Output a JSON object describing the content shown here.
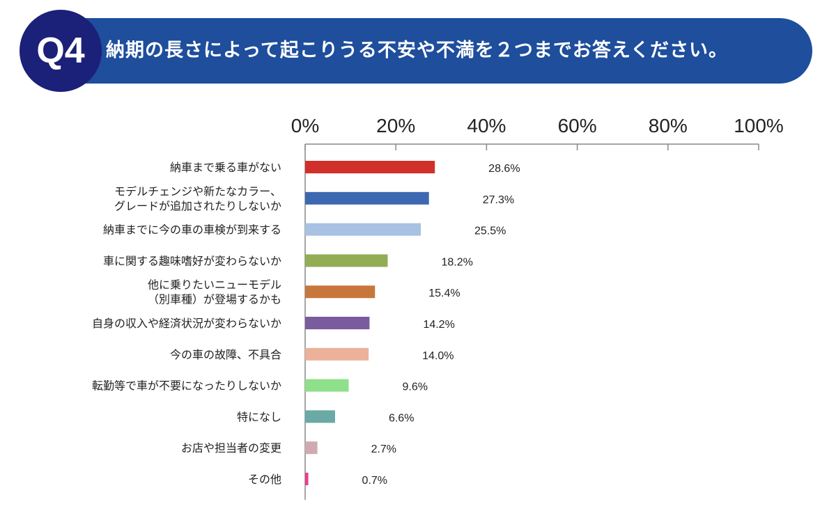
{
  "header": {
    "badge": "Q4",
    "question": "納期の長さによって起こりうる不安や不満を２つまでお答えください。"
  },
  "chart_data": {
    "type": "bar",
    "orientation": "horizontal",
    "xlim": [
      0,
      100
    ],
    "x_ticks": [
      "0%",
      "20%",
      "40%",
      "60%",
      "80%",
      "100%"
    ],
    "x_tick_values": [
      0,
      20,
      40,
      60,
      80,
      100
    ],
    "grid": false,
    "categories": [
      [
        "納車まで乗る車がない"
      ],
      [
        "モデルチェンジや新たなカラー、",
        "グレードが追加されたりしないか"
      ],
      [
        "納車までに今の車の車検が到来する"
      ],
      [
        "車に関する趣味嗜好が変わらないか"
      ],
      [
        "他に乗りたいニューモデル",
        "（別車種）が登場するかも"
      ],
      [
        "自身の収入や経済状況が変わらないか"
      ],
      [
        "今の車の故障、不具合"
      ],
      [
        "転勤等で車が不要になったりしないか"
      ],
      [
        "特になし"
      ],
      [
        "お店や担当者の変更"
      ],
      [
        "その他"
      ]
    ],
    "values": [
      28.6,
      27.3,
      25.5,
      18.2,
      15.4,
      14.2,
      14.0,
      9.6,
      6.6,
      2.7,
      0.7
    ],
    "value_labels": [
      "28.6%",
      "27.3%",
      "25.5%",
      "18.2%",
      "15.4%",
      "14.2%",
      "14.0%",
      "9.6%",
      "6.6%",
      "2.7%",
      "0.7%"
    ],
    "colors": [
      "#d1302a",
      "#3b68b0",
      "#a9c1e2",
      "#93ad55",
      "#c8773c",
      "#7a5c9e",
      "#ecb199",
      "#8fe08a",
      "#6aa9a6",
      "#cfaab3",
      "#ea3f86"
    ]
  }
}
